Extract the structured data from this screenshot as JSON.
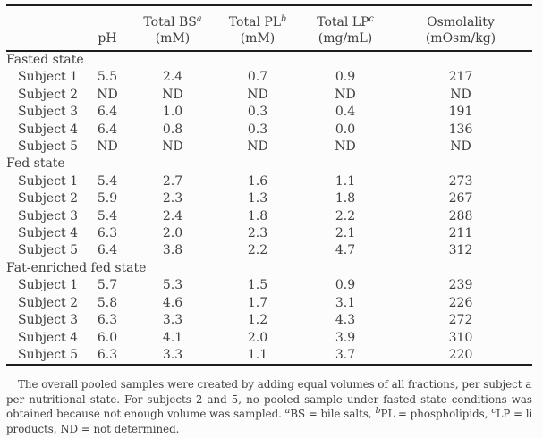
{
  "page": {
    "background": "#fcfcfc",
    "text_color": "#3d3d3d",
    "rule_color": "#1d1d1d"
  },
  "table": {
    "columns": [
      {
        "key": "ph",
        "title": "",
        "sup": "",
        "unit": "pH"
      },
      {
        "key": "total-bs",
        "title": "Total BS",
        "sup": "a",
        "unit": "(mM)"
      },
      {
        "key": "total-pl",
        "title": "Total PL",
        "sup": "b",
        "unit": "(mM)"
      },
      {
        "key": "total-lp",
        "title": "Total LP",
        "sup": "c",
        "unit": "(mg/mL)"
      },
      {
        "key": "osmolality",
        "title": "Osmolality",
        "sup": "",
        "unit": "(mOsm/kg)"
      }
    ],
    "sections": [
      {
        "label": "Fasted state",
        "rows": [
          {
            "label": "Subject 1",
            "values": [
              "5.5",
              "2.4",
              "0.7",
              "0.9",
              "217"
            ]
          },
          {
            "label": "Subject 2",
            "values": [
              "ND",
              "ND",
              "ND",
              "ND",
              "ND"
            ]
          },
          {
            "label": "Subject 3",
            "values": [
              "6.4",
              "1.0",
              "0.3",
              "0.4",
              "191"
            ]
          },
          {
            "label": "Subject 4",
            "values": [
              "6.4",
              "0.8",
              "0.3",
              "0.0",
              "136"
            ]
          },
          {
            "label": "Subject 5",
            "values": [
              "ND",
              "ND",
              "ND",
              "ND",
              "ND"
            ]
          }
        ]
      },
      {
        "label": "Fed state",
        "rows": [
          {
            "label": "Subject 1",
            "values": [
              "5.4",
              "2.7",
              "1.6",
              "1.1",
              "273"
            ]
          },
          {
            "label": "Subject 2",
            "values": [
              "5.9",
              "2.3",
              "1.3",
              "1.8",
              "267"
            ]
          },
          {
            "label": "Subject 3",
            "values": [
              "5.4",
              "2.4",
              "1.8",
              "2.2",
              "288"
            ]
          },
          {
            "label": "Subject 4",
            "values": [
              "6.3",
              "2.0",
              "2.3",
              "2.1",
              "211"
            ]
          },
          {
            "label": "Subject 5",
            "values": [
              "6.4",
              "3.8",
              "2.2",
              "4.7",
              "312"
            ]
          }
        ]
      },
      {
        "label": "Fat-enriched fed state",
        "rows": [
          {
            "label": "Subject 1",
            "values": [
              "5.7",
              "5.3",
              "1.5",
              "0.9",
              "239"
            ]
          },
          {
            "label": "Subject 2",
            "values": [
              "5.8",
              "4.6",
              "1.7",
              "3.1",
              "226"
            ]
          },
          {
            "label": "Subject 3",
            "values": [
              "6.3",
              "3.3",
              "1.2",
              "4.3",
              "272"
            ]
          },
          {
            "label": "Subject 4",
            "values": [
              "6.0",
              "4.1",
              "2.0",
              "3.9",
              "310"
            ]
          },
          {
            "label": "Subject 5",
            "values": [
              "6.3",
              "3.3",
              "1.1",
              "3.7",
              "220"
            ]
          }
        ]
      }
    ]
  },
  "footnote": {
    "lines": [
      {
        "segments": [
          {
            "text": "The overall pooled samples were created by adding equal volumes of all fractions, per subject and"
          }
        ]
      },
      {
        "segments": [
          {
            "text": "per nutritional state. For subjects 2 and 5, no pooled sample under fasted state conditions was"
          }
        ]
      },
      {
        "segments": [
          {
            "text": "obtained because not enough volume was sampled. "
          },
          {
            "sup": "a"
          },
          {
            "text": "BS = bile salts, "
          },
          {
            "sup": "b"
          },
          {
            "text": "PL = phospholipids, "
          },
          {
            "sup": "c"
          },
          {
            "text": "LP = lipid"
          }
        ]
      },
      {
        "segments": [
          {
            "text": "products, ND = not determined."
          }
        ]
      }
    ]
  }
}
